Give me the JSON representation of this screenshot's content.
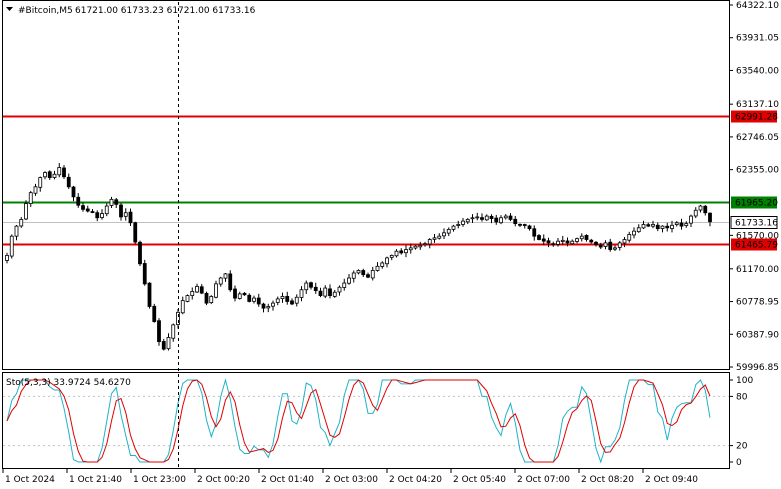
{
  "header": {
    "symbol": "#Bitcoin,M5",
    "ohlc": "61721.00 61733.23 61721.00 61733.16"
  },
  "price_axis": {
    "ticks": [
      "64322.10",
      "63931.05",
      "63540.00",
      "63137.10",
      "62746.05",
      "62355.00",
      "61570.00",
      "61170.00",
      "60778.95",
      "60387.90",
      "59996.85"
    ],
    "tick_values": [
      64322.1,
      63931.05,
      63540.0,
      63137.1,
      62746.05,
      62355.0,
      61570.0,
      61170.0,
      60778.95,
      60387.9,
      59996.85
    ],
    "range": [
      59996.85,
      64322.1
    ]
  },
  "levels": [
    {
      "label": "62991.28",
      "value": 62991.28,
      "color": "#e00000"
    },
    {
      "label": "61965.20",
      "value": 61965.2,
      "color": "#008000"
    },
    {
      "label": "61733.16",
      "value": 61733.16,
      "color": "#000000",
      "current": true
    },
    {
      "label": "61465.79",
      "value": 61465.79,
      "color": "#e00000"
    }
  ],
  "indicator": {
    "label": "Sto(5,3,3) 33.9724 54.6270",
    "main_color": "#20b2c8",
    "signal_color": "#e00000",
    "ticks": [
      "100",
      "80",
      "20",
      "0"
    ],
    "tick_values": [
      100,
      80,
      20,
      0
    ]
  },
  "time_axis": {
    "labels": [
      "1 Oct 2024",
      "1 Oct 21:40",
      "1 Oct 23:00",
      "2 Oct 00:20",
      "2 Oct 01:40",
      "2 Oct 03:00",
      "2 Oct 04:20",
      "2 Oct 05:40",
      "2 Oct 07:00",
      "2 Oct 08:20",
      "2 Oct 09:40"
    ]
  },
  "chart_data": {
    "type": "candlestick",
    "symbol": "#Bitcoin",
    "timeframe": "M5",
    "closes": [
      61330,
      61560,
      61680,
      61760,
      61950,
      62080,
      62150,
      62260,
      62320,
      62260,
      62300,
      62380,
      62270,
      62150,
      62030,
      61930,
      61880,
      61860,
      61850,
      61780,
      61830,
      61920,
      62000,
      61940,
      61790,
      61840,
      61720,
      61490,
      61230,
      60990,
      60720,
      60540,
      60300,
      60210,
      60350,
      60500,
      60650,
      60790,
      60850,
      60900,
      60960,
      60880,
      60760,
      60840,
      60990,
      61060,
      61110,
      60920,
      60820,
      60870,
      60860,
      60780,
      60820,
      60750,
      60700,
      60720,
      60760,
      60810,
      60840,
      60780,
      60750,
      60830,
      60920,
      61000,
      60950,
      60910,
      60850,
      60940,
      60850,
      60890,
      60950,
      61000,
      61060,
      61120,
      61150,
      61100,
      61070,
      61150,
      61200,
      61240,
      61300,
      61330,
      61380,
      61360,
      61400,
      61420,
      61440,
      61450,
      61470,
      61520,
      61540,
      61560,
      61600,
      61640,
      61680,
      61700,
      61740,
      61760,
      61780,
      61790,
      61760,
      61800,
      61770,
      61730,
      61780,
      61800,
      61760,
      61710,
      61700,
      61690,
      61650,
      61560,
      61520,
      61500,
      61480,
      61470,
      61500,
      61510,
      61480,
      61500,
      61530,
      61560,
      61520,
      61490,
      61460,
      61430,
      61480,
      61400,
      61420,
      61480,
      61520,
      61580,
      61620,
      61660,
      61700,
      61680,
      61700,
      61650,
      61680,
      61660,
      61690,
      61720,
      61680,
      61710,
      61800,
      61870,
      61920,
      61840,
      61733
    ]
  }
}
